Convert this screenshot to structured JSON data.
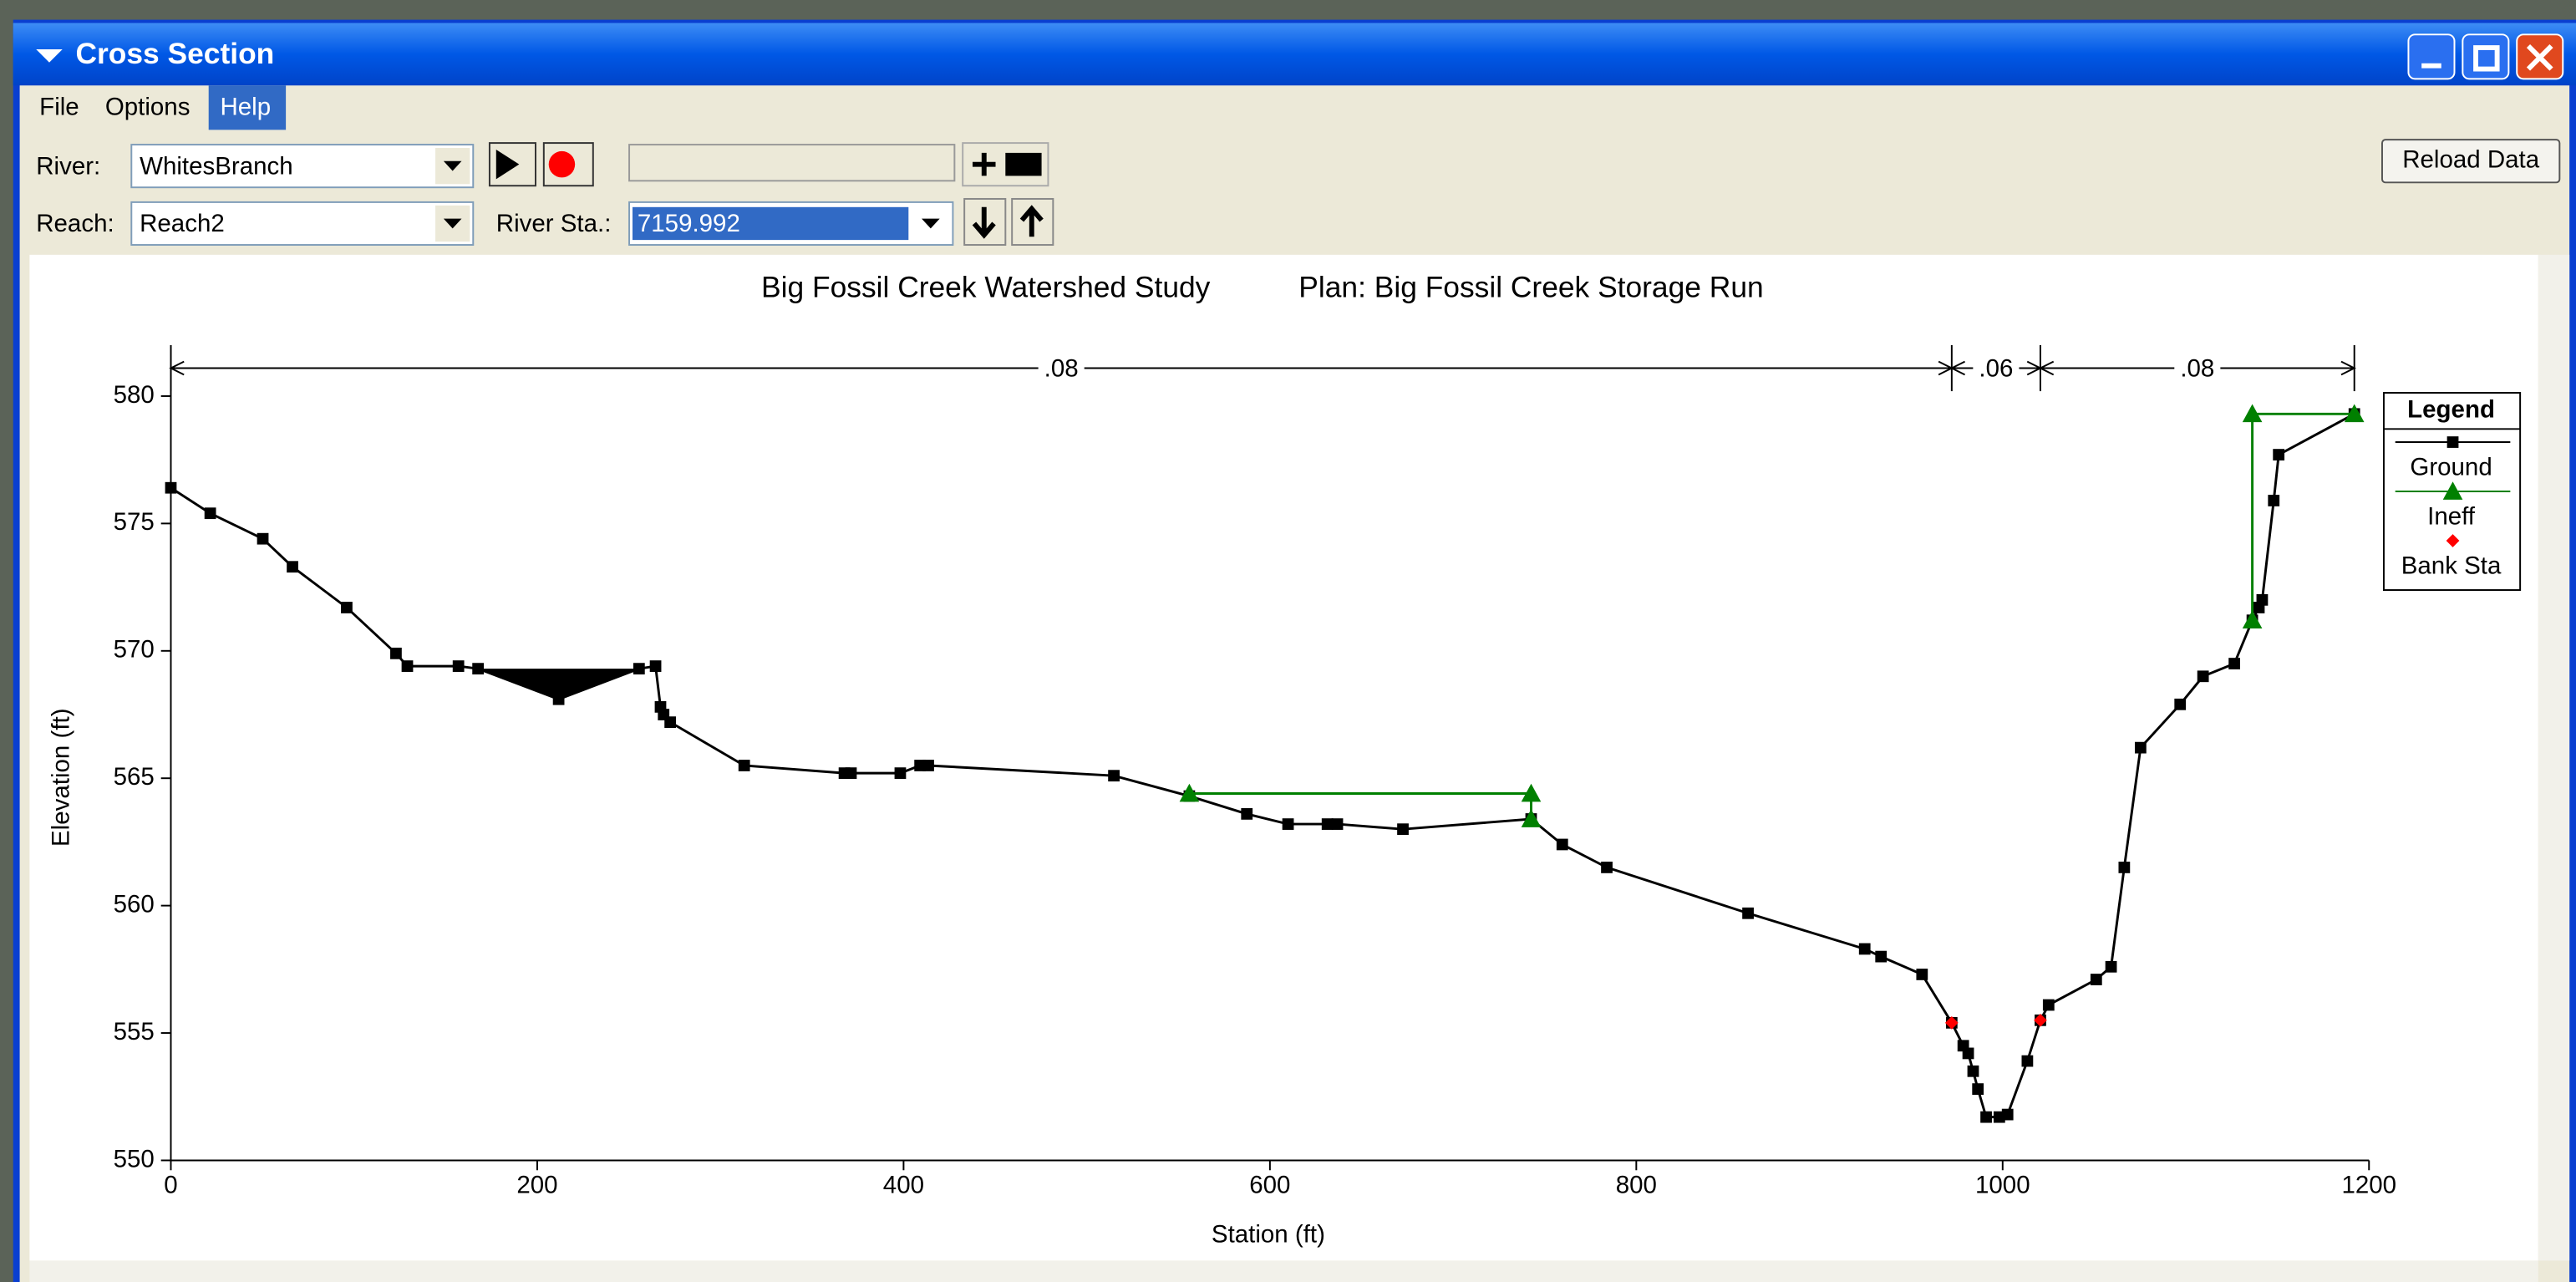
{
  "window": {
    "title": "Cross Section",
    "reload_button": "Reload Data"
  },
  "menu": [
    "File",
    "Options",
    "Help"
  ],
  "toolbar": {
    "river_label": "River:",
    "river": "WhitesBranch",
    "reach_label": "Reach:",
    "reach": "Reach2",
    "station_label": "River Sta.:",
    "station": "7159.992"
  },
  "chart_data": {
    "type": "line",
    "title": "Big Fossil Creek Watershed Study",
    "subtitle": "Plan: Big Fossil Creek Storage Run",
    "x_label": "Station (ft)",
    "y_label": "Elevation (ft)",
    "xlim": [
      0,
      1200
    ],
    "xticks": [
      0,
      200,
      400,
      600,
      800,
      1000,
      1200
    ],
    "ylim": [
      550,
      580
    ],
    "yticks": [
      550,
      555,
      560,
      565,
      570,
      575,
      580
    ],
    "legend_title": "Legend",
    "legend_position": "right",
    "mannings": {
      "labels": [
        ".08",
        ".06",
        ".08"
      ],
      "breaks": [
        0,
        972.2,
        1020.6,
        1192
      ]
    },
    "series": [
      {
        "name": "Ground",
        "color": "#000000",
        "marker": "square",
        "x": [
          0,
          21.5,
          50.2,
          66.4,
          96,
          122.9,
          129.1,
          157,
          167.7,
          211.7,
          255.6,
          264.6,
          267.3,
          269,
          272.6,
          313,
          367.7,
          371.3,
          398.2,
          409,
          413.5,
          514.8,
          556,
          587.4,
          609.9,
          631.4,
          636.8,
          672.6,
          742.6,
          759.6,
          783.9,
          861,
          924.7,
          933.6,
          956,
          972.2,
          978.5,
          981.2,
          983.9,
          986.5,
          991,
          998.2,
          1002.7,
          1013.5,
          1020.6,
          1025.1,
          1051.1,
          1059.2,
          1066.4,
          1075.3,
          1096.9,
          1109.4,
          1126.5,
          1136.3,
          1139.9,
          1141.7,
          1148,
          1150.7,
          1192
        ],
        "values": [
          576.4,
          575.4,
          574.4,
          573.3,
          571.7,
          569.9,
          569.4,
          569.4,
          569.3,
          568.1,
          569.3,
          569.4,
          567.8,
          567.5,
          567.2,
          565.5,
          565.2,
          565.2,
          565.2,
          565.5,
          565.5,
          565.1,
          564.3,
          563.6,
          563.2,
          563.2,
          563.2,
          563.0,
          563.4,
          562.4,
          561.5,
          559.7,
          558.3,
          558.0,
          557.3,
          555.4,
          554.5,
          554.2,
          553.5,
          552.8,
          551.7,
          551.7,
          551.8,
          553.9,
          555.5,
          556.1,
          557.1,
          557.6,
          561.5,
          566.2,
          567.9,
          569.0,
          569.5,
          571.2,
          571.7,
          572.0,
          575.9,
          577.7,
          579.3
        ]
      },
      {
        "name": "Ineff",
        "color": "#008000",
        "marker": "triangle",
        "x": [
          556,
          742.6,
          742.6,
          null,
          1136.3,
          1136.3,
          1192
        ],
        "values": [
          564.4,
          564.4,
          563.4,
          null,
          571.2,
          579.3,
          579.3
        ]
      },
      {
        "name": "Bank Sta",
        "color": "#ff0000",
        "marker": "diamond",
        "x": [
          972.2,
          1020.6
        ],
        "values": [
          555.4,
          555.5
        ]
      }
    ]
  }
}
